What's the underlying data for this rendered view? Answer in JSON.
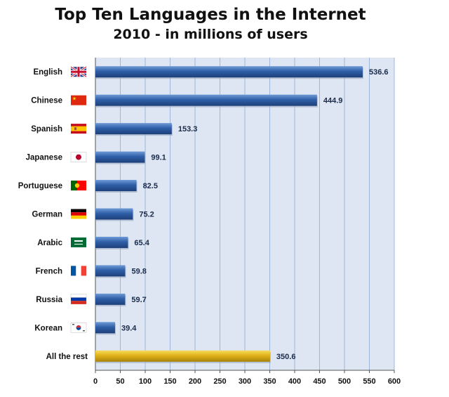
{
  "chart_data": {
    "type": "bar",
    "orientation": "horizontal",
    "title": "Top Ten Languages in the Internet",
    "subtitle": "2010 - in millions of users",
    "categories": [
      "English",
      "Chinese",
      "Spanish",
      "Japanese",
      "Portuguese",
      "German",
      "Arabic",
      "French",
      "Russia",
      "Korean",
      "All the rest"
    ],
    "flags": [
      "flag-uk-icon",
      "flag-china-icon",
      "flag-spain-icon",
      "flag-japan-icon",
      "flag-portugal-icon",
      "flag-germany-icon",
      "flag-saudi-arabia-icon",
      "flag-france-icon",
      "flag-russia-icon",
      "flag-south-korea-icon",
      ""
    ],
    "values": [
      536.6,
      444.9,
      153.3,
      99.1,
      82.5,
      75.2,
      65.4,
      59.8,
      59.7,
      39.4,
      350.6
    ],
    "value_labels": [
      "536.6",
      "444.9",
      "153.3",
      "99.1",
      "82.5",
      "75.2",
      "65.4",
      "59.8",
      "59.7",
      "39.4",
      "350.6"
    ],
    "bar_colors": [
      "#2f5fa8",
      "#2f5fa8",
      "#2f5fa8",
      "#2f5fa8",
      "#2f5fa8",
      "#2f5fa8",
      "#2f5fa8",
      "#2f5fa8",
      "#2f5fa8",
      "#2f5fa8",
      "#e0b21a"
    ],
    "xlim": [
      0,
      600
    ],
    "xticks": [
      0,
      50,
      100,
      150,
      200,
      250,
      300,
      350,
      400,
      450,
      500,
      550,
      600
    ],
    "grid": true,
    "plot_background": "#dde6f2",
    "grid_color": "#9fb6d6"
  }
}
